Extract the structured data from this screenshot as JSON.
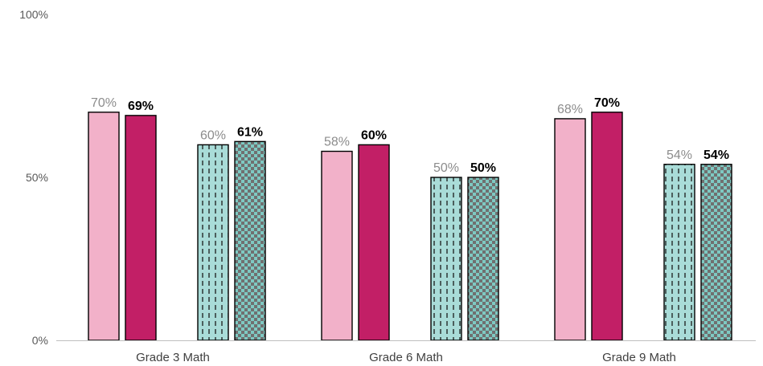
{
  "chart_data": {
    "type": "bar",
    "categories": [
      "Grade 3 Math",
      "Grade 6 Math",
      "Grade 9 Math"
    ],
    "ylim": [
      0,
      100
    ],
    "yticks": [
      {
        "value": 0,
        "label": "0%"
      },
      {
        "value": 50,
        "label": "50%"
      },
      {
        "value": 100,
        "label": "100%"
      }
    ],
    "grid": false,
    "series": [
      {
        "values": [
          70,
          58,
          68
        ],
        "labels": [
          "70%",
          "58%",
          "68%"
        ],
        "fill": "#f2b1c9",
        "pattern": "solid",
        "label_style": "light"
      },
      {
        "values": [
          69,
          60,
          70
        ],
        "labels": [
          "69%",
          "60%",
          "70%"
        ],
        "fill": "#c21f66",
        "pattern": "solid",
        "label_style": "bold"
      },
      {
        "values": [
          60,
          50,
          54
        ],
        "labels": [
          "60%",
          "50%",
          "54%"
        ],
        "fill": "#a9dcd8",
        "pattern": "dashed-vertical",
        "label_style": "light"
      },
      {
        "values": [
          61,
          50,
          54
        ],
        "labels": [
          "61%",
          "50%",
          "54%"
        ],
        "fill": "#7ec9c2",
        "pattern": "checker",
        "label_style": "bold"
      }
    ],
    "colors": {
      "axis": "#bfbfbf",
      "bar_outline": "#000000",
      "pattern_ink": "#1a1a1a",
      "checker_dark": "#707070"
    }
  }
}
